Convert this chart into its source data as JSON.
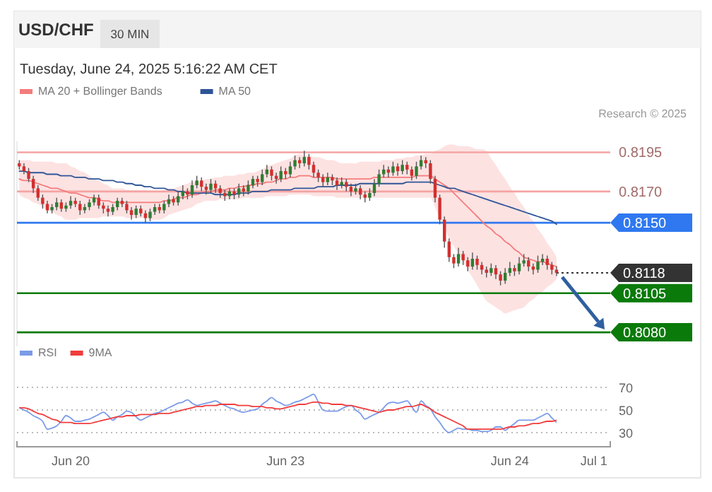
{
  "chart_data": [
    {
      "type": "candlestick",
      "title": "USD/CHF",
      "subtitle": "30 MIN",
      "annotations": [
        "Tuesday, June 24, 2025 5:16:22 AM CET",
        "Research © 2025"
      ],
      "categories": [
        null,
        null,
        null,
        null,
        null,
        null,
        null,
        null,
        null,
        null,
        null,
        null,
        null,
        null,
        null,
        null,
        null,
        null,
        null,
        null,
        null,
        null,
        null,
        null,
        null,
        null,
        null,
        null,
        null,
        null,
        null,
        null,
        null,
        null,
        null,
        null,
        null,
        null,
        null,
        null,
        null,
        null,
        null,
        null,
        null,
        null,
        null,
        null,
        null,
        null,
        null,
        null,
        null,
        null,
        null,
        null,
        null,
        null,
        null,
        null,
        null,
        null,
        null,
        null,
        null,
        null,
        null,
        null,
        null,
        null,
        null,
        null,
        null,
        null,
        null,
        null,
        null,
        null,
        null,
        null,
        null,
        null,
        null,
        null,
        null,
        null,
        null,
        null,
        null,
        null,
        null,
        null,
        null,
        null,
        null,
        null,
        null,
        null,
        null,
        null,
        null,
        null,
        null,
        null,
        null,
        null,
        null,
        null,
        null,
        null,
        null,
        null,
        null,
        null,
        null,
        null,
        null,
        null,
        null,
        null,
        null,
        null,
        null,
        null,
        null,
        null,
        null
      ],
      "ohlc": [
        [
          0.8188,
          0.819,
          0.8184,
          0.8186
        ],
        [
          0.8186,
          0.8188,
          0.8181,
          0.8183
        ],
        [
          0.8183,
          0.8185,
          0.8176,
          0.8178
        ],
        [
          0.8178,
          0.818,
          0.8169,
          0.8172
        ],
        [
          0.8172,
          0.8174,
          0.8164,
          0.8166
        ],
        [
          0.8166,
          0.8168,
          0.8159,
          0.8162
        ],
        [
          0.8162,
          0.8164,
          0.8156,
          0.8158
        ],
        [
          0.8158,
          0.8162,
          0.8156,
          0.816
        ],
        [
          0.816,
          0.8166,
          0.8158,
          0.8163
        ],
        [
          0.8163,
          0.8165,
          0.8157,
          0.8159
        ],
        [
          0.8159,
          0.8163,
          0.8157,
          0.8161
        ],
        [
          0.8161,
          0.8167,
          0.8159,
          0.8164
        ],
        [
          0.8164,
          0.8166,
          0.816,
          0.8162
        ],
        [
          0.8162,
          0.8164,
          0.8155,
          0.8158
        ],
        [
          0.8158,
          0.8162,
          0.8156,
          0.816
        ],
        [
          0.816,
          0.8165,
          0.8158,
          0.8163
        ],
        [
          0.8163,
          0.8168,
          0.8161,
          0.8166
        ],
        [
          0.8166,
          0.8168,
          0.8159,
          0.8161
        ],
        [
          0.8161,
          0.8163,
          0.8156,
          0.8159
        ],
        [
          0.8159,
          0.8161,
          0.8154,
          0.8157
        ],
        [
          0.8157,
          0.8162,
          0.8155,
          0.816
        ],
        [
          0.816,
          0.8166,
          0.8158,
          0.8164
        ],
        [
          0.8164,
          0.8166,
          0.816,
          0.8162
        ],
        [
          0.8162,
          0.8164,
          0.8156,
          0.8158
        ],
        [
          0.8158,
          0.816,
          0.8152,
          0.8155
        ],
        [
          0.8155,
          0.8161,
          0.8153,
          0.8159
        ],
        [
          0.8159,
          0.8161,
          0.8154,
          0.8156
        ],
        [
          0.8156,
          0.8158,
          0.815,
          0.8153
        ],
        [
          0.8153,
          0.8159,
          0.8151,
          0.8157
        ],
        [
          0.8157,
          0.8162,
          0.8155,
          0.816
        ],
        [
          0.816,
          0.8162,
          0.8156,
          0.8158
        ],
        [
          0.8158,
          0.8164,
          0.8156,
          0.8162
        ],
        [
          0.8162,
          0.8168,
          0.816,
          0.8165
        ],
        [
          0.8165,
          0.8167,
          0.8161,
          0.8163
        ],
        [
          0.8163,
          0.817,
          0.8161,
          0.8167
        ],
        [
          0.8167,
          0.8174,
          0.8165,
          0.817
        ],
        [
          0.817,
          0.8172,
          0.8165,
          0.8168
        ],
        [
          0.8168,
          0.8177,
          0.8166,
          0.8174
        ],
        [
          0.8174,
          0.818,
          0.8172,
          0.8177
        ],
        [
          0.8177,
          0.8179,
          0.817,
          0.8173
        ],
        [
          0.8173,
          0.8175,
          0.8168,
          0.8171
        ],
        [
          0.8171,
          0.8178,
          0.8169,
          0.8175
        ],
        [
          0.8175,
          0.8177,
          0.8169,
          0.8172
        ],
        [
          0.8172,
          0.8174,
          0.8166,
          0.8169
        ],
        [
          0.8169,
          0.8171,
          0.8164,
          0.8167
        ],
        [
          0.8167,
          0.8172,
          0.8165,
          0.817
        ],
        [
          0.817,
          0.8172,
          0.8165,
          0.8168
        ],
        [
          0.8168,
          0.8175,
          0.8166,
          0.8172
        ],
        [
          0.8172,
          0.8174,
          0.8167,
          0.817
        ],
        [
          0.817,
          0.8177,
          0.8168,
          0.8174
        ],
        [
          0.8174,
          0.818,
          0.8172,
          0.8178
        ],
        [
          0.8178,
          0.818,
          0.8173,
          0.8176
        ],
        [
          0.8176,
          0.8184,
          0.8174,
          0.8181
        ],
        [
          0.8181,
          0.8187,
          0.8179,
          0.8184
        ],
        [
          0.8184,
          0.8186,
          0.8177,
          0.818
        ],
        [
          0.818,
          0.8182,
          0.8175,
          0.8178
        ],
        [
          0.8178,
          0.8186,
          0.8176,
          0.8183
        ],
        [
          0.8183,
          0.8185,
          0.8178,
          0.8181
        ],
        [
          0.8181,
          0.8189,
          0.8179,
          0.8186
        ],
        [
          0.8186,
          0.8193,
          0.8184,
          0.819
        ],
        [
          0.819,
          0.8192,
          0.8185,
          0.8188
        ],
        [
          0.8188,
          0.8196,
          0.8186,
          0.8192
        ],
        [
          0.8192,
          0.8194,
          0.8184,
          0.8187
        ],
        [
          0.8187,
          0.8189,
          0.8179,
          0.8182
        ],
        [
          0.8182,
          0.8184,
          0.8176,
          0.8179
        ],
        [
          0.8179,
          0.8181,
          0.8173,
          0.8176
        ],
        [
          0.8176,
          0.8182,
          0.8174,
          0.8179
        ],
        [
          0.8179,
          0.8181,
          0.8174,
          0.8177
        ],
        [
          0.8177,
          0.8179,
          0.8171,
          0.8174
        ],
        [
          0.8174,
          0.8179,
          0.8172,
          0.8176
        ],
        [
          0.8176,
          0.8178,
          0.817,
          0.8173
        ],
        [
          0.8173,
          0.8175,
          0.8167,
          0.817
        ],
        [
          0.817,
          0.8175,
          0.8168,
          0.8172
        ],
        [
          0.8172,
          0.8174,
          0.8165,
          0.8168
        ],
        [
          0.8168,
          0.817,
          0.8163,
          0.8166
        ],
        [
          0.8166,
          0.8172,
          0.8164,
          0.8169
        ],
        [
          0.8169,
          0.8178,
          0.8167,
          0.8175
        ],
        [
          0.8175,
          0.8184,
          0.8173,
          0.8181
        ],
        [
          0.8181,
          0.8187,
          0.8179,
          0.8184
        ],
        [
          0.8184,
          0.8186,
          0.8179,
          0.8182
        ],
        [
          0.8182,
          0.8189,
          0.818,
          0.8186
        ],
        [
          0.8186,
          0.8188,
          0.818,
          0.8183
        ],
        [
          0.8183,
          0.819,
          0.8181,
          0.8187
        ],
        [
          0.8187,
          0.8189,
          0.8181,
          0.8184
        ],
        [
          0.8184,
          0.8186,
          0.8177,
          0.818
        ],
        [
          0.818,
          0.8189,
          0.8178,
          0.8186
        ],
        [
          0.8186,
          0.8193,
          0.8184,
          0.819
        ],
        [
          0.819,
          0.8192,
          0.8185,
          0.8188
        ],
        [
          0.8188,
          0.819,
          0.8175,
          0.8178
        ],
        [
          0.8178,
          0.818,
          0.8163,
          0.8166
        ],
        [
          0.8166,
          0.8168,
          0.8149,
          0.8152
        ],
        [
          0.8152,
          0.8154,
          0.8134,
          0.8138
        ],
        [
          0.8138,
          0.814,
          0.8125,
          0.8128
        ],
        [
          0.8128,
          0.813,
          0.8121,
          0.8124
        ],
        [
          0.8124,
          0.8134,
          0.8122,
          0.813
        ],
        [
          0.813,
          0.8132,
          0.8123,
          0.8126
        ],
        [
          0.8126,
          0.8128,
          0.8119,
          0.8122
        ],
        [
          0.8122,
          0.8131,
          0.812,
          0.8127
        ],
        [
          0.8127,
          0.8129,
          0.812,
          0.8123
        ],
        [
          0.8123,
          0.8125,
          0.8117,
          0.812
        ],
        [
          0.812,
          0.8122,
          0.8115,
          0.8118
        ],
        [
          0.8118,
          0.8124,
          0.8116,
          0.8121
        ],
        [
          0.8121,
          0.8123,
          0.8114,
          0.8117
        ],
        [
          0.8117,
          0.8119,
          0.811,
          0.8113
        ],
        [
          0.8113,
          0.8121,
          0.8111,
          0.8118
        ],
        [
          0.8118,
          0.8125,
          0.8116,
          0.8121
        ],
        [
          0.8121,
          0.8123,
          0.8116,
          0.8119
        ],
        [
          0.8119,
          0.8128,
          0.8117,
          0.8124
        ],
        [
          0.8124,
          0.813,
          0.8122,
          0.8126
        ],
        [
          0.8126,
          0.8128,
          0.8119,
          0.8122
        ],
        [
          0.8122,
          0.8124,
          0.8117,
          0.812
        ],
        [
          0.812,
          0.8129,
          0.8118,
          0.8125
        ],
        [
          0.8125,
          0.813,
          0.8123,
          0.8127
        ],
        [
          0.8127,
          0.8129,
          0.812,
          0.8123
        ],
        [
          0.8123,
          0.8125,
          0.8117,
          0.812
        ],
        [
          0.812,
          0.8122,
          0.8116,
          0.8118
        ],
        null,
        null,
        null,
        null,
        null,
        null,
        null,
        null,
        null,
        null,
        null
      ],
      "ylim": [
        0.8071,
        0.8202
      ],
      "legend": "top left",
      "series": [
        {
          "type": "line",
          "name": "MA 20 + Bollinger Bands",
          "color": "#f47c7c",
          "values": [
            0.8178,
            0.8177,
            0.8177,
            0.8176,
            0.8175,
            0.8174,
            0.8173,
            0.8172,
            0.8172,
            0.8171,
            0.817,
            0.8169,
            0.8169,
            0.8168,
            0.8167,
            0.8166,
            0.8166,
            0.8165,
            0.8164,
            0.8164,
            0.8163,
            0.8163,
            0.8163,
            0.8163,
            0.8163,
            0.8163,
            0.8163,
            0.8163,
            0.8163,
            0.8163,
            0.8163,
            0.8164,
            0.8164,
            0.8165,
            0.8166,
            0.8166,
            0.8167,
            0.8168,
            0.8168,
            0.8169,
            0.817,
            0.817,
            0.8171,
            0.8171,
            0.8171,
            0.8172,
            0.8172,
            0.8173,
            0.8173,
            0.8174,
            0.8174,
            0.8175,
            0.8175,
            0.8176,
            0.8176,
            0.8177,
            0.8178,
            0.8178,
            0.8179,
            0.8179,
            0.818,
            0.818,
            0.818,
            0.8179,
            0.8179,
            0.8179,
            0.8179,
            0.8179,
            0.8178,
            0.8178,
            0.8178,
            0.8178,
            0.8178,
            0.8178,
            0.8178,
            0.8178,
            0.8179,
            0.8179,
            0.8179,
            0.8179,
            0.8179,
            0.8179,
            0.8179,
            0.8179,
            0.8179,
            0.818,
            0.818,
            0.818,
            0.818,
            0.8178,
            0.8176,
            0.8174,
            0.8172,
            0.8169,
            0.8166,
            0.8163,
            0.816,
            0.8157,
            0.8154,
            0.8151,
            0.8148,
            0.8146,
            0.8143,
            0.8141,
            0.8138,
            0.8136,
            0.8133,
            0.8131,
            0.8128,
            0.8127,
            0.8126,
            0.8125,
            0.8125,
            0.8124,
            0.8123,
            0.8122,
            null,
            null,
            null,
            null,
            null,
            null,
            null,
            null,
            null,
            null,
            null
          ],
          "upper": [
            0.819,
            0.819,
            0.819,
            0.8189,
            0.8189,
            0.8189,
            0.8189,
            0.8189,
            0.8188,
            0.8188,
            0.8188,
            0.8186,
            0.8185,
            0.8183,
            0.8182,
            0.818,
            0.8178,
            0.8177,
            0.8175,
            0.8174,
            0.8172,
            0.8172,
            0.8172,
            0.8171,
            0.8171,
            0.8171,
            0.8171,
            0.8171,
            0.817,
            0.817,
            0.817,
            0.8171,
            0.8172,
            0.8172,
            0.8173,
            0.8174,
            0.8175,
            0.8176,
            0.8176,
            0.8177,
            0.8178,
            0.8178,
            0.8179,
            0.8179,
            0.818,
            0.818,
            0.818,
            0.8181,
            0.8181,
            0.8182,
            0.8182,
            0.8183,
            0.8184,
            0.8186,
            0.8187,
            0.8188,
            0.8189,
            0.819,
            0.8191,
            0.8193,
            0.8194,
            0.8193,
            0.8193,
            0.8192,
            0.8192,
            0.8191,
            0.819,
            0.819,
            0.8189,
            0.8188,
            0.8188,
            0.8188,
            0.8188,
            0.8189,
            0.8189,
            0.8189,
            0.8189,
            0.8189,
            0.819,
            0.819,
            0.819,
            0.8191,
            0.8191,
            0.8192,
            0.8192,
            0.8193,
            0.8193,
            0.8194,
            0.8194,
            0.8196,
            0.8197,
            0.8199,
            0.82,
            0.82,
            0.8199,
            0.8199,
            0.8199,
            0.8198,
            0.8197,
            0.8197,
            0.8196,
            0.8191,
            0.8187,
            0.8182,
            0.8178,
            0.8173,
            0.8169,
            0.8164,
            0.816,
            0.8155,
            0.8151,
            0.8146,
            0.8142,
            0.8137,
            0.8133,
            0.8128,
            null,
            null,
            null,
            null,
            null,
            null,
            null,
            null,
            null,
            null,
            null
          ],
          "lower": [
            0.8168,
            0.8166,
            0.8165,
            0.8163,
            0.8162,
            0.816,
            0.8158,
            0.8157,
            0.8155,
            0.8154,
            0.8152,
            0.8152,
            0.8152,
            0.8153,
            0.8153,
            0.8153,
            0.8153,
            0.8153,
            0.8154,
            0.8154,
            0.8154,
            0.8154,
            0.8154,
            0.8153,
            0.8153,
            0.8153,
            0.8153,
            0.8153,
            0.8152,
            0.8152,
            0.8152,
            0.8153,
            0.8155,
            0.8156,
            0.8157,
            0.8158,
            0.8159,
            0.816,
            0.8162,
            0.8163,
            0.8164,
            0.8164,
            0.8164,
            0.8165,
            0.8165,
            0.8165,
            0.8165,
            0.8165,
            0.8166,
            0.8166,
            0.8166,
            0.8166,
            0.8166,
            0.8167,
            0.8167,
            0.8167,
            0.8167,
            0.8167,
            0.8168,
            0.8168,
            0.8168,
            0.8168,
            0.8168,
            0.8167,
            0.8167,
            0.8167,
            0.8167,
            0.8167,
            0.8166,
            0.8166,
            0.8166,
            0.8166,
            0.8166,
            0.8166,
            0.8166,
            0.8166,
            0.8166,
            0.8166,
            0.8166,
            0.8166,
            0.8166,
            0.8166,
            0.8166,
            0.8166,
            0.8166,
            0.8166,
            0.8166,
            0.8166,
            0.8166,
            0.816,
            0.8153,
            0.8147,
            0.814,
            0.8135,
            0.813,
            0.8125,
            0.812,
            0.8115,
            0.811,
            0.8105,
            0.81,
            0.8098,
            0.8096,
            0.8094,
            0.8092,
            0.8093,
            0.8094,
            0.8095,
            0.8096,
            0.8099,
            0.8101,
            0.8104,
            0.8106,
            0.8109,
            0.8111,
            0.8114,
            null,
            null,
            null,
            null,
            null,
            null,
            null,
            null,
            null,
            null,
            null
          ]
        },
        {
          "type": "line",
          "name": "MA 50",
          "color": "#2f5597",
          "values": [
            0.8183,
            0.8183,
            0.8182,
            0.8182,
            0.8182,
            0.8182,
            0.8181,
            0.8181,
            0.8181,
            0.818,
            0.818,
            0.818,
            0.8179,
            0.8179,
            0.8179,
            0.8178,
            0.8178,
            0.8178,
            0.8177,
            0.8177,
            0.8177,
            0.8176,
            0.8176,
            0.8175,
            0.8175,
            0.8174,
            0.8174,
            0.8173,
            0.8173,
            0.8172,
            0.8172,
            0.8172,
            0.8171,
            0.8171,
            0.817,
            0.817,
            0.8169,
            0.8169,
            0.8169,
            0.8169,
            0.8169,
            0.8169,
            0.8168,
            0.8168,
            0.8168,
            0.8168,
            0.8168,
            0.8169,
            0.8169,
            0.8169,
            0.817,
            0.817,
            0.817,
            0.817,
            0.8171,
            0.8171,
            0.8171,
            0.8171,
            0.8171,
            0.8172,
            0.8172,
            0.8172,
            0.8172,
            0.8172,
            0.8173,
            0.8173,
            0.8173,
            0.8173,
            0.8174,
            0.8174,
            0.8174,
            0.8174,
            0.8174,
            0.8175,
            0.8175,
            0.8175,
            0.8175,
            0.8175,
            0.8175,
            0.8175,
            0.8175,
            0.8175,
            0.8175,
            0.8176,
            0.8176,
            0.8176,
            0.8176,
            0.8176,
            0.8176,
            0.8175,
            0.8174,
            0.8173,
            0.8172,
            0.8172,
            0.8171,
            0.817,
            0.8169,
            0.8168,
            0.8167,
            0.8166,
            0.8165,
            0.8164,
            0.8163,
            0.8162,
            0.8161,
            0.816,
            0.8159,
            0.8158,
            0.8157,
            0.8156,
            0.8155,
            0.8154,
            0.8153,
            0.8152,
            0.8151,
            0.8149,
            null,
            null,
            null,
            null,
            null,
            null,
            null,
            null,
            null,
            null,
            null
          ]
        }
      ],
      "ref_lines": [
        {
          "axis": "y",
          "value": 0.8195,
          "label": "0.8195",
          "color": "#f5a3a3",
          "line_style": "solid"
        },
        {
          "axis": "y",
          "value": 0.817,
          "label": "0.8170",
          "color": "#f5a3a3",
          "line_style": "solid"
        },
        {
          "axis": "y",
          "value": 0.815,
          "label": "0.8150",
          "color": "#2f78f0",
          "line_style": "solid"
        },
        {
          "axis": "y",
          "value": 0.8118,
          "label": "0.8118",
          "color": "#333333",
          "line_style": "dotted"
        },
        {
          "axis": "y",
          "value": 0.8105,
          "label": "0.8105",
          "color": "#0a7a0a",
          "line_style": "solid"
        },
        {
          "axis": "y",
          "value": 0.808,
          "label": "0.8080",
          "color": "#0a7a0a",
          "line_style": "solid"
        }
      ]
    },
    {
      "type": "line",
      "categories": [
        null,
        null,
        null,
        null,
        null,
        null,
        null,
        null,
        null,
        null,
        null,
        "Jun 20",
        null,
        null,
        null,
        null,
        null,
        null,
        null,
        null,
        null,
        null,
        null,
        null,
        null,
        null,
        null,
        null,
        null,
        null,
        null,
        null,
        null,
        null,
        null,
        null,
        null,
        null,
        null,
        null,
        null,
        null,
        null,
        null,
        null,
        null,
        null,
        null,
        null,
        null,
        null,
        null,
        null,
        null,
        null,
        null,
        null,
        "Jun 23",
        null,
        null,
        null,
        null,
        null,
        null,
        null,
        null,
        null,
        null,
        null,
        null,
        null,
        null,
        null,
        null,
        null,
        null,
        null,
        null,
        null,
        null,
        null,
        null,
        null,
        null,
        null,
        null,
        null,
        null,
        null,
        null,
        null,
        null,
        null,
        null,
        null,
        null,
        null,
        null,
        null,
        null,
        null,
        null,
        null,
        null,
        null,
        "Jun 24",
        null,
        null,
        null,
        null,
        null,
        null,
        null,
        null,
        null,
        null,
        null,
        null,
        null,
        null,
        null,
        null,
        null,
        "Jul 1",
        null,
        null,
        null
      ],
      "ylim": [
        17.5,
        70
      ],
      "yticks": [
        30,
        50,
        70
      ],
      "grid": "y",
      "legend": "top left",
      "series": [
        {
          "name": "RSI",
          "color": "#7b9be8",
          "values": [
            52,
            50,
            48,
            45,
            43,
            40,
            33,
            34,
            36,
            40,
            45,
            43,
            40,
            40,
            41,
            42,
            44,
            46,
            48,
            45,
            41,
            44,
            46,
            49,
            48,
            44,
            41,
            43,
            45,
            47,
            48,
            50,
            52,
            54,
            56,
            57,
            59,
            56,
            54,
            55,
            56,
            57,
            58,
            56,
            54,
            52,
            51,
            49,
            48,
            49,
            50,
            51,
            55,
            58,
            61,
            58,
            56,
            54,
            55,
            57,
            58,
            60,
            62,
            64,
            57,
            50,
            49,
            49,
            49,
            51,
            53,
            54,
            50,
            47,
            42,
            44,
            46,
            48,
            52,
            56,
            57,
            56,
            57,
            58,
            53,
            48,
            58,
            54,
            51,
            44,
            39,
            33,
            30,
            32,
            34,
            33,
            33,
            32,
            32,
            31,
            31,
            32,
            35,
            35,
            32,
            35,
            38,
            41,
            41,
            41,
            41,
            43,
            45,
            47,
            43,
            39,
            null,
            null,
            null,
            null,
            null,
            null,
            null,
            null,
            null,
            null,
            null
          ]
        },
        {
          "name": "9MA",
          "color": "#f03c3c",
          "values": [
            52,
            52,
            51,
            49,
            47,
            46,
            44,
            42,
            41,
            39,
            39,
            39,
            38,
            38,
            38,
            38,
            39,
            40,
            41,
            42,
            43,
            44,
            44,
            45,
            45,
            45,
            46,
            46,
            46,
            46,
            47,
            47,
            47,
            48,
            49,
            50,
            51,
            52,
            53,
            53,
            54,
            54,
            54,
            55,
            55,
            55,
            55,
            54,
            54,
            54,
            53,
            53,
            53,
            52,
            52,
            51,
            51,
            52,
            53,
            54,
            55,
            55,
            56,
            57,
            57,
            56,
            56,
            55,
            55,
            55,
            54,
            54,
            53,
            52,
            51,
            50,
            49,
            48,
            49,
            50,
            50,
            51,
            52,
            53,
            53,
            54,
            55,
            53,
            51,
            48,
            46,
            44,
            42,
            40,
            38,
            36,
            33,
            33,
            33,
            33,
            33,
            33,
            33,
            33,
            34,
            35,
            35,
            36,
            36,
            37,
            38,
            38,
            39,
            40,
            40,
            41,
            null,
            null,
            null,
            null,
            null,
            null,
            null,
            null,
            null,
            null,
            null
          ]
        }
      ]
    }
  ]
}
